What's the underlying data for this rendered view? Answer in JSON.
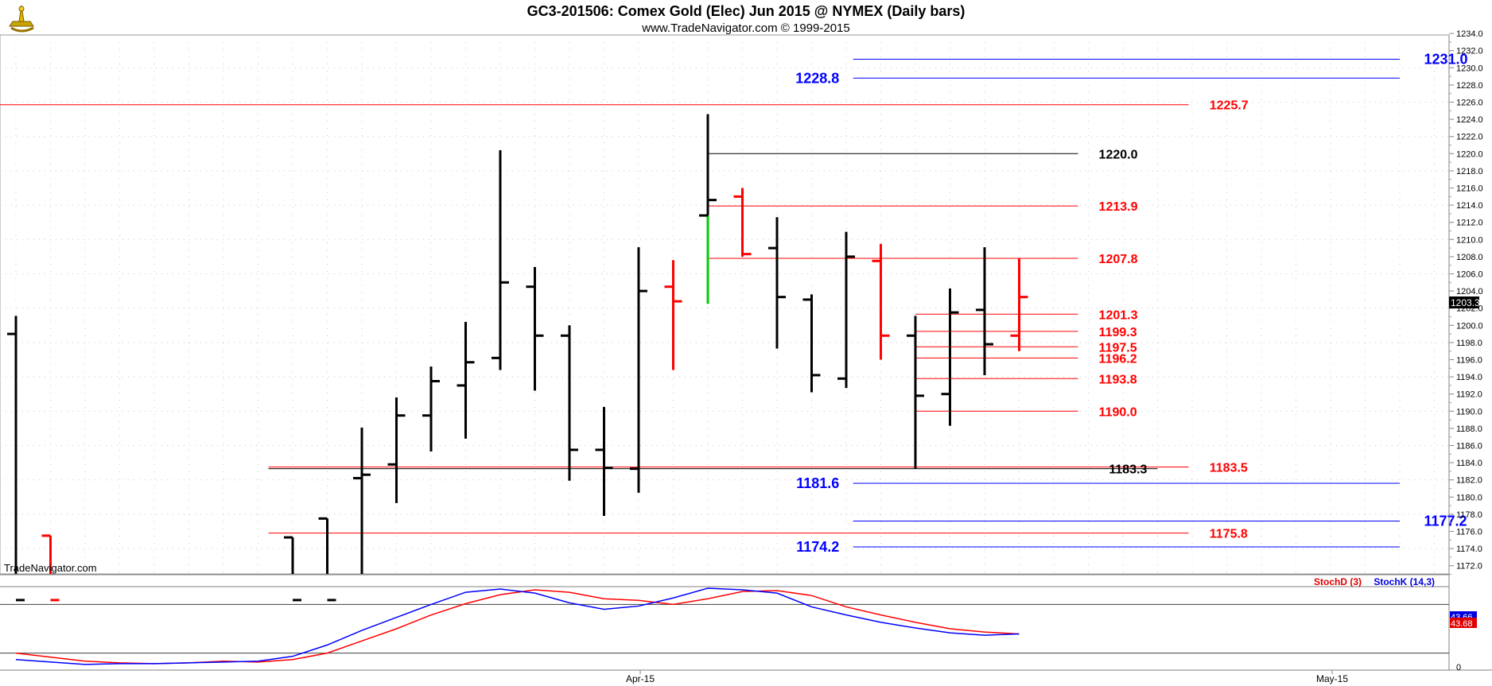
{
  "header": {
    "title": "GC3-201506:  Comex Gold (Elec) Jun 2015 @ NYMEX  (Daily bars)",
    "subtitle": "www.TradeNavigator.com © 1999-2015",
    "logo_icon": "sextant-icon"
  },
  "watermark": "TradeNavigator.com",
  "current_price_badge": "1203.3",
  "stoch_legend": {
    "d_label": "StochD (3)",
    "k_label": "StochK (14,3)"
  },
  "stoch_badges": {
    "k": "43.66",
    "d": "43.68"
  },
  "colors": {
    "up": "#000000",
    "down": "#ff0000",
    "highlight": "#00cc00",
    "blue": "#0000ff",
    "red": "#ff0000",
    "grid": "#c8c8c8",
    "background": "#ffffff"
  },
  "chart_data": {
    "type": "ohlc",
    "yaxis": {
      "min": 1171,
      "max": 1234.5,
      "ticks": [
        1172,
        1174,
        1176,
        1178,
        1180,
        1182,
        1184,
        1186,
        1188,
        1190,
        1192,
        1194,
        1196,
        1198,
        1200,
        1202,
        1204,
        1206,
        1208,
        1210,
        1212,
        1214,
        1216,
        1218,
        1220,
        1222,
        1224,
        1226,
        1228,
        1230,
        1232,
        1234
      ]
    },
    "xaxis": {
      "ticks": [
        {
          "label": "Apr-15",
          "bar": 18
        },
        {
          "label": "May-15",
          "bar": 38
        }
      ]
    },
    "bars": [
      {
        "i": 0,
        "o": 1199.0,
        "h": 1201.1,
        "l": 1168.0,
        "c": 1168.0,
        "color": "black"
      },
      {
        "i": 1,
        "o": 1175.5,
        "h": 1175.5,
        "l": 1168.0,
        "c": 1168.0,
        "color": "red"
      },
      {
        "i": 8,
        "o": 1175.3,
        "h": 1175.3,
        "l": 1168.0,
        "c": 1168.0,
        "color": "black"
      },
      {
        "i": 9,
        "o": 1177.5,
        "h": 1177.5,
        "l": 1168.0,
        "c": 1168.0,
        "color": "black"
      },
      {
        "i": 10,
        "o": 1182.2,
        "h": 1188.1,
        "l": 1168.0,
        "c": 1182.6,
        "color": "black"
      },
      {
        "i": 11,
        "o": 1183.8,
        "h": 1191.6,
        "l": 1179.3,
        "c": 1189.5,
        "color": "black"
      },
      {
        "i": 12,
        "o": 1189.5,
        "h": 1195.2,
        "l": 1185.3,
        "c": 1193.5,
        "color": "black"
      },
      {
        "i": 13,
        "o": 1193.0,
        "h": 1200.4,
        "l": 1186.8,
        "c": 1195.7,
        "color": "black"
      },
      {
        "i": 14,
        "o": 1196.2,
        "h": 1220.4,
        "l": 1194.8,
        "c": 1205.0,
        "color": "black"
      },
      {
        "i": 15,
        "o": 1204.5,
        "h": 1206.8,
        "l": 1192.4,
        "c": 1198.8,
        "color": "black"
      },
      {
        "i": 16,
        "o": 1198.8,
        "h": 1200.0,
        "l": 1181.9,
        "c": 1185.5,
        "color": "black"
      },
      {
        "i": 17,
        "o": 1185.5,
        "h": 1190.5,
        "l": 1177.8,
        "c": 1183.4,
        "color": "black"
      },
      {
        "i": 18,
        "o": 1183.3,
        "h": 1209.1,
        "l": 1180.5,
        "c": 1204.0,
        "color": "black"
      },
      {
        "i": 19,
        "o": 1204.5,
        "h": 1207.6,
        "l": 1194.8,
        "c": 1202.8,
        "color": "red"
      },
      {
        "i": 20,
        "o": 1212.8,
        "h": 1224.6,
        "l": 1202.5,
        "c": 1214.6,
        "color": "green-black"
      },
      {
        "i": 21,
        "o": 1215.0,
        "h": 1216.0,
        "l": 1208.0,
        "c": 1208.3,
        "color": "red"
      },
      {
        "i": 22,
        "o": 1209.0,
        "h": 1212.6,
        "l": 1197.3,
        "c": 1203.3,
        "color": "black"
      },
      {
        "i": 23,
        "o": 1203.0,
        "h": 1203.6,
        "l": 1192.2,
        "c": 1194.2,
        "color": "black"
      },
      {
        "i": 24,
        "o": 1193.8,
        "h": 1210.9,
        "l": 1192.7,
        "c": 1208.0,
        "color": "black"
      },
      {
        "i": 25,
        "o": 1207.5,
        "h": 1209.5,
        "l": 1196.0,
        "c": 1198.8,
        "color": "red"
      },
      {
        "i": 26,
        "o": 1198.8,
        "h": 1201.1,
        "l": 1183.3,
        "c": 1191.8,
        "color": "black"
      },
      {
        "i": 27,
        "o": 1192.0,
        "h": 1204.3,
        "l": 1188.3,
        "c": 1201.5,
        "color": "black"
      },
      {
        "i": 28,
        "o": 1201.8,
        "h": 1209.1,
        "l": 1194.2,
        "c": 1197.8,
        "color": "black"
      },
      {
        "i": 29,
        "o": 1198.8,
        "h": 1207.8,
        "l": 1197.0,
        "c": 1203.3,
        "color": "red"
      }
    ],
    "levels": [
      {
        "value": 1231.0,
        "label": "1231.0",
        "color": "blue",
        "from_bar": 24.2,
        "to_bar": 40.0,
        "label_bar": 40.7,
        "label_anchor": "start"
      },
      {
        "value": 1228.8,
        "label": "1228.8",
        "color": "blue",
        "from_bar": 24.2,
        "to_bar": 40.0,
        "label_bar": 23.8,
        "label_anchor": "end"
      },
      {
        "value": 1225.7,
        "label": "1225.7",
        "color": "red",
        "from_bar": -0.5,
        "to_bar": 33.9,
        "label_bar": 34.5,
        "label_anchor": "start"
      },
      {
        "value": 1220.0,
        "label": "1220.0",
        "color": "black",
        "from_bar": 20.0,
        "to_bar": 30.7,
        "label_bar": 31.3,
        "label_anchor": "start"
      },
      {
        "value": 1213.9,
        "label": "1213.9",
        "color": "red",
        "from_bar": 20.0,
        "to_bar": 30.7,
        "label_bar": 31.3,
        "label_anchor": "start"
      },
      {
        "value": 1207.8,
        "label": "1207.8",
        "color": "red",
        "from_bar": 20.0,
        "to_bar": 30.7,
        "label_bar": 31.3,
        "label_anchor": "start"
      },
      {
        "value": 1201.3,
        "label": "1201.3",
        "color": "red",
        "from_bar": 26.0,
        "to_bar": 30.7,
        "label_bar": 31.3,
        "label_anchor": "start"
      },
      {
        "value": 1199.3,
        "label": "1199.3",
        "color": "red",
        "from_bar": 26.0,
        "to_bar": 30.7,
        "label_bar": 31.3,
        "label_anchor": "start"
      },
      {
        "value": 1197.5,
        "label": "1197.5",
        "color": "red",
        "from_bar": 26.0,
        "to_bar": 30.7,
        "label_bar": 31.3,
        "label_anchor": "start"
      },
      {
        "value": 1196.2,
        "label": "1196.2",
        "color": "red",
        "from_bar": 26.0,
        "to_bar": 30.7,
        "label_bar": 31.3,
        "label_anchor": "start"
      },
      {
        "value": 1193.8,
        "label": "1193.8",
        "color": "red",
        "from_bar": 26.0,
        "to_bar": 30.7,
        "label_bar": 31.3,
        "label_anchor": "start"
      },
      {
        "value": 1190.0,
        "label": "1190.0",
        "color": "red",
        "from_bar": 26.0,
        "to_bar": 30.7,
        "label_bar": 31.3,
        "label_anchor": "start"
      },
      {
        "value": 1183.5,
        "label": "1183.5",
        "color": "red",
        "from_bar": 7.3,
        "to_bar": 33.9,
        "label_bar": 34.5,
        "label_anchor": "start"
      },
      {
        "value": 1183.3,
        "label": "1183.3",
        "color": "black",
        "from_bar": 7.3,
        "to_bar": 33.0,
        "label_bar": 32.7,
        "label_anchor": "end"
      },
      {
        "value": 1181.6,
        "label": "1181.6",
        "color": "blue",
        "from_bar": 24.2,
        "to_bar": 40.0,
        "label_bar": 23.8,
        "label_anchor": "end"
      },
      {
        "value": 1177.2,
        "label": "1177.2",
        "color": "blue",
        "from_bar": 24.2,
        "to_bar": 40.0,
        "label_bar": 40.7,
        "label_anchor": "start"
      },
      {
        "value": 1175.8,
        "label": "1175.8",
        "color": "red",
        "from_bar": 7.3,
        "to_bar": 33.9,
        "label_bar": 34.5,
        "label_anchor": "start"
      },
      {
        "value": 1174.2,
        "label": "1174.2",
        "color": "blue",
        "from_bar": 24.2,
        "to_bar": 40.0,
        "label_bar": 23.8,
        "label_anchor": "end"
      }
    ],
    "stochastic": {
      "ylim": [
        0,
        100
      ],
      "levels": [
        20,
        80
      ],
      "axis_labels": [
        "0"
      ],
      "series": [
        {
          "name": "StochD (3)",
          "color": "red",
          "points": [
            [
              0,
              20
            ],
            [
              2,
              10
            ],
            [
              3,
              8
            ],
            [
              4,
              7
            ],
            [
              5,
              8
            ],
            [
              6,
              10
            ],
            [
              7,
              9
            ],
            [
              8,
              12
            ],
            [
              9,
              20
            ],
            [
              10,
              35
            ],
            [
              11,
              50
            ],
            [
              12,
              67
            ],
            [
              13,
              81
            ],
            [
              14,
              92
            ],
            [
              15,
              98
            ],
            [
              16,
              95
            ],
            [
              17,
              87
            ],
            [
              18,
              85
            ],
            [
              19,
              80
            ],
            [
              20,
              87
            ],
            [
              21,
              96
            ],
            [
              22,
              97
            ],
            [
              23,
              91
            ],
            [
              24,
              77
            ],
            [
              25,
              67
            ],
            [
              26,
              58
            ],
            [
              27,
              50
            ],
            [
              28,
              46
            ],
            [
              29,
              43.68
            ]
          ]
        },
        {
          "name": "StochK (14,3)",
          "color": "blue",
          "points": [
            [
              0,
              12
            ],
            [
              2,
              6
            ],
            [
              3,
              7
            ],
            [
              4,
              7
            ],
            [
              5,
              8
            ],
            [
              6,
              9
            ],
            [
              7,
              10
            ],
            [
              8,
              16
            ],
            [
              9,
              30
            ],
            [
              10,
              48
            ],
            [
              11,
              64
            ],
            [
              12,
              80
            ],
            [
              13,
              95
            ],
            [
              14,
              99
            ],
            [
              15,
              94
            ],
            [
              16,
              82
            ],
            [
              17,
              74
            ],
            [
              18,
              78
            ],
            [
              19,
              88
            ],
            [
              20,
              100
            ],
            [
              21,
              98
            ],
            [
              22,
              94
            ],
            [
              23,
              77
            ],
            [
              24,
              67
            ],
            [
              25,
              58
            ],
            [
              26,
              51
            ],
            [
              27,
              45
            ],
            [
              28,
              42
            ],
            [
              29,
              43.66
            ]
          ]
        }
      ]
    }
  }
}
